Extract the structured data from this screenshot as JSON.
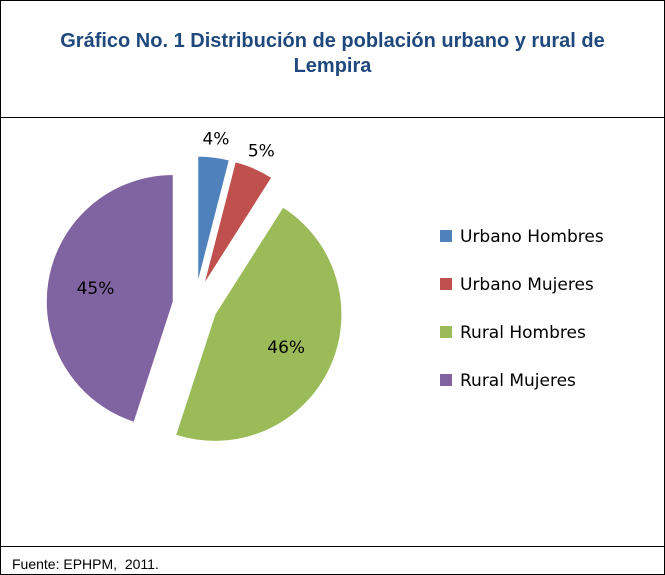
{
  "chart_data": {
    "type": "pie",
    "title": "Gráfico No. 1 Distribución de población urbano y rural de Lempira",
    "categories": [
      "Urbano Hombres",
      "Urbano Mujeres",
      "Rural Hombres",
      "Rural Mujeres"
    ],
    "values": [
      4,
      5,
      46,
      45
    ],
    "value_labels": [
      "4%",
      "5%",
      "46%",
      "45%"
    ],
    "colors": [
      "#4f81bd",
      "#c0504d",
      "#9bbb59",
      "#8064a2"
    ],
    "legend": "right",
    "source": "Fuente: EPHPM,  2011."
  }
}
